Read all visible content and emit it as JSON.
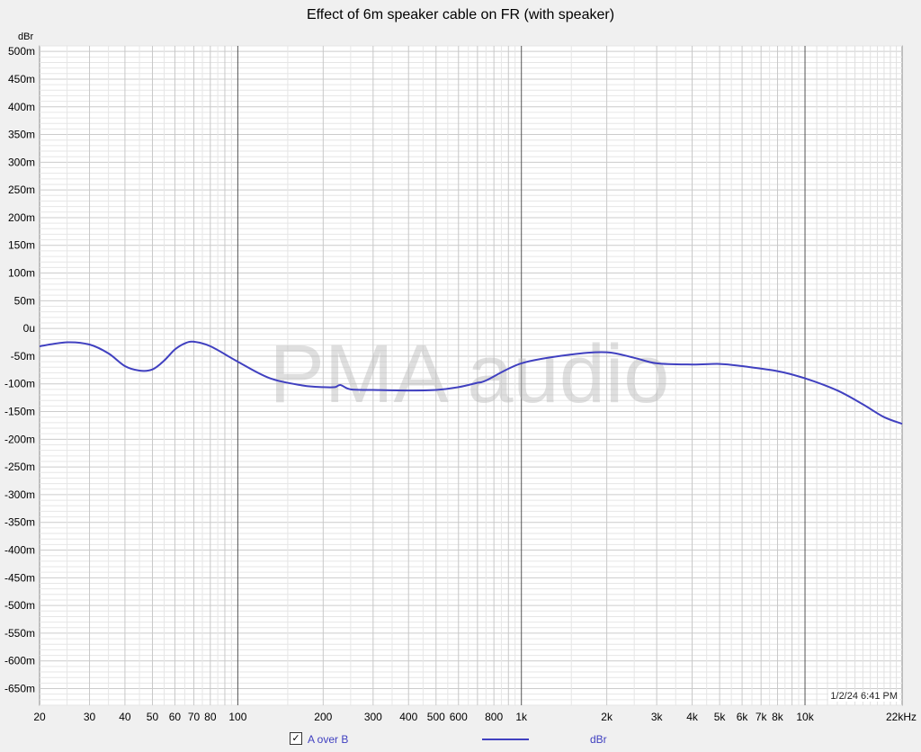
{
  "chart_data": {
    "type": "line",
    "title": "Effect of 6m speaker cable on FR (with speaker)",
    "ylabel": "dBr",
    "xlabel": "",
    "xscale": "log",
    "xlim": [
      20,
      22000
    ],
    "ylim": [
      -0.68,
      0.51
    ],
    "grid": true,
    "y_ticks": [
      0.5,
      0.45,
      0.4,
      0.35,
      0.3,
      0.25,
      0.2,
      0.15,
      0.1,
      0.05,
      0,
      -0.05,
      -0.1,
      -0.15,
      -0.2,
      -0.25,
      -0.3,
      -0.35,
      -0.4,
      -0.45,
      -0.5,
      -0.55,
      -0.6,
      -0.65
    ],
    "y_tick_labels": [
      "500m",
      "450m",
      "400m",
      "350m",
      "300m",
      "250m",
      "200m",
      "150m",
      "100m",
      "50m",
      "0u",
      "-50m",
      "-100m",
      "-150m",
      "-200m",
      "-250m",
      "-300m",
      "-350m",
      "-400m",
      "-450m",
      "-500m",
      "-550m",
      "-600m",
      "-650m"
    ],
    "x_ticks": [
      20,
      30,
      40,
      50,
      60,
      70,
      80,
      100,
      200,
      300,
      400,
      500,
      600,
      800,
      1000,
      2000,
      3000,
      4000,
      5000,
      6000,
      7000,
      8000,
      10000,
      22000
    ],
    "x_tick_labels": [
      "20",
      "30",
      "40",
      "50",
      "60",
      "70",
      "80",
      "100",
      "200",
      "300",
      "400",
      "500",
      "600",
      "800",
      "1k",
      "2k",
      "3k",
      "4k",
      "5k",
      "6k",
      "7k",
      "8k",
      "10k",
      "22kHz"
    ],
    "series": [
      {
        "name": "A over B",
        "color": "#4040c0",
        "x": [
          20,
          25,
          30,
          35,
          40,
          45,
          50,
          55,
          60,
          65,
          70,
          80,
          100,
          130,
          170,
          200,
          220,
          230,
          250,
          300,
          400,
          500,
          600,
          700,
          750,
          1000,
          1500,
          2000,
          2500,
          3000,
          4000,
          5000,
          6000,
          8000,
          10000,
          13000,
          16000,
          19000,
          22000
        ],
        "y": [
          -0.032,
          -0.025,
          -0.029,
          -0.045,
          -0.068,
          -0.076,
          -0.074,
          -0.058,
          -0.038,
          -0.027,
          -0.024,
          -0.032,
          -0.06,
          -0.09,
          -0.103,
          -0.106,
          -0.106,
          -0.102,
          -0.11,
          -0.111,
          -0.112,
          -0.111,
          -0.106,
          -0.098,
          -0.094,
          -0.063,
          -0.047,
          -0.043,
          -0.053,
          -0.063,
          -0.065,
          -0.064,
          -0.068,
          -0.077,
          -0.09,
          -0.112,
          -0.137,
          -0.16,
          -0.172
        ]
      }
    ],
    "watermark": "PMA audio",
    "timestamp": "1/2/24 6:41 PM",
    "legend": {
      "checked_label": "A over B",
      "unit_label": "dBr",
      "placement": "bottom"
    }
  }
}
